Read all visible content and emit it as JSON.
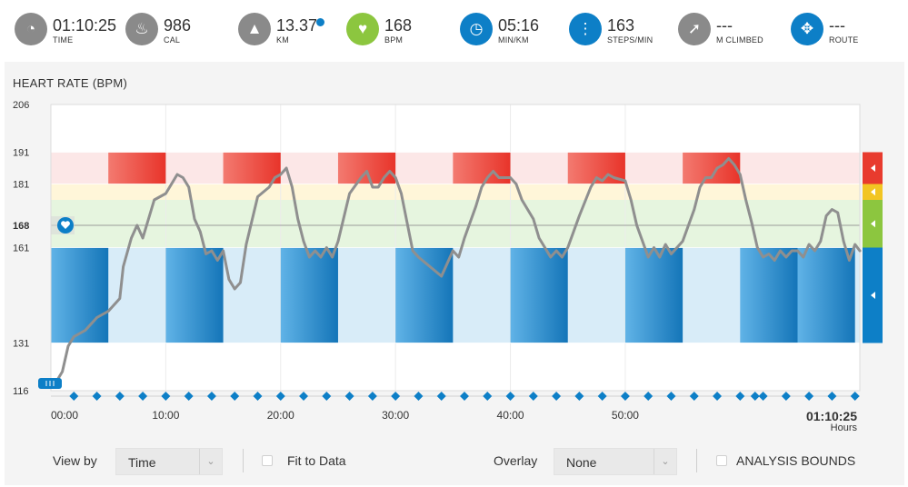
{
  "stats": [
    {
      "value": "01:10:25",
      "label": "TIME",
      "icon": "stopwatch-icon",
      "color": "#8a8a8a"
    },
    {
      "value": "986",
      "label": "CAL",
      "icon": "flame-icon",
      "color": "#8a8a8a"
    },
    {
      "value": "13.37",
      "label": "KM",
      "icon": "road-icon",
      "color": "#8a8a8a"
    },
    {
      "value": "168",
      "label": "BPM",
      "icon": "heart-icon",
      "color": "#8cc63f"
    },
    {
      "value": "05:16",
      "label": "MIN/KM",
      "icon": "speedometer-icon",
      "color": "#0d7fc7"
    },
    {
      "value": "163",
      "label": "STEPS/MIN",
      "icon": "footsteps-icon",
      "color": "#0d7fc7"
    },
    {
      "value": "---",
      "label": "M CLIMBED",
      "icon": "climb-arrow-icon",
      "color": "#8a8a8a"
    },
    {
      "value": "---",
      "label": "ROUTE",
      "icon": "route-icon",
      "color": "#0d7fc7"
    }
  ],
  "chart_data": {
    "type": "line",
    "title": "HEART RATE (BPM)",
    "x_unit": "minutes",
    "x_ticks": [
      "00:00",
      "10:00",
      "20:00",
      "30:00",
      "40:00",
      "50:00"
    ],
    "x_tick_values": [
      0,
      10,
      20,
      30,
      40,
      50
    ],
    "end_label": "01:10:25",
    "end_sublabel": "Hours",
    "xlim": [
      0,
      70.42
    ],
    "ylim": [
      116,
      206
    ],
    "y_ticks": [
      206,
      191,
      181,
      168,
      161,
      131,
      116
    ],
    "avg_bpm": 168,
    "zones": [
      {
        "from": 181,
        "to": 191,
        "color": "#fce7e7"
      },
      {
        "from": 176,
        "to": 181,
        "color": "#fff6d9"
      },
      {
        "from": 168,
        "to": 176,
        "color": "#e6f5df"
      },
      {
        "from": 161,
        "to": 168,
        "color": "#e6f5df"
      },
      {
        "from": 131,
        "to": 161,
        "color": "#d8ecf8"
      }
    ],
    "zone_markers": [
      "#e83b2e",
      "#f2c523",
      "#8cc63f",
      "#0d7fc7"
    ],
    "high_intervals": [
      [
        5,
        10
      ],
      [
        15,
        20
      ],
      [
        25,
        30
      ],
      [
        35,
        40
      ],
      [
        45,
        50
      ],
      [
        55,
        60
      ]
    ],
    "low_intervals": [
      [
        0,
        5
      ],
      [
        10,
        15
      ],
      [
        20,
        25
      ],
      [
        30,
        35
      ],
      [
        40,
        45
      ],
      [
        50,
        55
      ],
      [
        60,
        65
      ],
      [
        65,
        70
      ]
    ],
    "marker_times": [
      2,
      4,
      6,
      8,
      10,
      12,
      14,
      16,
      18,
      20,
      22,
      24,
      26,
      28,
      30,
      32,
      34,
      36,
      38,
      40,
      42,
      44,
      46,
      48,
      50,
      52,
      54,
      56,
      58,
      60,
      61.3,
      62,
      64,
      66,
      68,
      70
    ],
    "series": [
      {
        "values": [
          [
            0,
            117
          ],
          [
            0.5,
            119
          ],
          [
            1,
            122
          ],
          [
            1.5,
            130
          ],
          [
            2,
            133
          ],
          [
            3,
            135
          ],
          [
            4,
            139
          ],
          [
            5,
            141
          ],
          [
            5.5,
            143
          ],
          [
            6,
            145
          ],
          [
            6.3,
            155
          ],
          [
            7,
            164
          ],
          [
            7.5,
            168
          ],
          [
            8,
            164
          ],
          [
            8.5,
            170
          ],
          [
            9,
            176
          ],
          [
            10,
            178
          ],
          [
            10.5,
            181
          ],
          [
            11,
            184
          ],
          [
            11.5,
            183
          ],
          [
            12,
            180
          ],
          [
            12.5,
            170
          ],
          [
            13,
            166
          ],
          [
            13.5,
            159
          ],
          [
            14,
            160
          ],
          [
            14.5,
            157
          ],
          [
            15,
            160
          ],
          [
            15.5,
            151
          ],
          [
            16,
            148
          ],
          [
            16.5,
            150
          ],
          [
            17,
            162
          ],
          [
            18,
            177
          ],
          [
            19,
            180
          ],
          [
            19.5,
            183
          ],
          [
            20,
            184
          ],
          [
            20.5,
            186
          ],
          [
            21,
            180
          ],
          [
            21.5,
            170
          ],
          [
            22,
            163
          ],
          [
            22.5,
            158
          ],
          [
            23,
            160
          ],
          [
            23.5,
            158
          ],
          [
            24,
            161
          ],
          [
            24.5,
            158
          ],
          [
            25,
            163
          ],
          [
            26,
            178
          ],
          [
            27,
            183
          ],
          [
            27.5,
            185
          ],
          [
            28,
            180
          ],
          [
            28.5,
            180
          ],
          [
            29,
            183
          ],
          [
            29.5,
            185
          ],
          [
            30,
            183
          ],
          [
            30.5,
            178
          ],
          [
            31,
            169
          ],
          [
            31.5,
            160
          ],
          [
            32,
            158
          ],
          [
            33,
            155
          ],
          [
            34,
            152
          ],
          [
            34.5,
            156
          ],
          [
            35,
            160
          ],
          [
            35.5,
            158
          ],
          [
            36,
            164
          ],
          [
            37,
            174
          ],
          [
            37.5,
            180
          ],
          [
            38,
            183
          ],
          [
            38.5,
            185
          ],
          [
            39,
            183
          ],
          [
            40,
            183
          ],
          [
            40.5,
            181
          ],
          [
            41,
            176
          ],
          [
            42,
            170
          ],
          [
            42.5,
            164
          ],
          [
            43,
            161
          ],
          [
            43.5,
            158
          ],
          [
            44,
            160
          ],
          [
            44.5,
            158
          ],
          [
            45,
            161
          ],
          [
            46,
            171
          ],
          [
            47,
            180
          ],
          [
            47.5,
            183
          ],
          [
            48,
            182
          ],
          [
            48.5,
            184
          ],
          [
            49,
            183
          ],
          [
            50,
            182
          ],
          [
            50.5,
            176
          ],
          [
            51,
            168
          ],
          [
            51.5,
            163
          ],
          [
            52,
            158
          ],
          [
            52.5,
            161
          ],
          [
            53,
            158
          ],
          [
            53.5,
            162
          ],
          [
            54,
            159
          ],
          [
            55,
            163
          ],
          [
            56,
            173
          ],
          [
            56.5,
            180
          ],
          [
            57,
            183
          ],
          [
            57.5,
            183
          ],
          [
            58,
            186
          ],
          [
            58.5,
            187
          ],
          [
            59,
            189
          ],
          [
            59.5,
            187
          ],
          [
            60,
            184
          ],
          [
            60.5,
            176
          ],
          [
            61,
            169
          ],
          [
            61.5,
            161
          ],
          [
            62,
            158
          ],
          [
            62.5,
            159
          ],
          [
            63,
            157
          ],
          [
            63.5,
            160
          ],
          [
            64,
            158
          ],
          [
            64.5,
            160
          ],
          [
            65,
            160
          ],
          [
            65.5,
            158
          ],
          [
            66,
            162
          ],
          [
            66.5,
            160
          ],
          [
            67,
            163
          ],
          [
            67.5,
            171
          ],
          [
            68,
            173
          ],
          [
            68.5,
            172
          ],
          [
            69,
            163
          ],
          [
            69.5,
            157
          ],
          [
            70,
            162
          ],
          [
            70.42,
            160
          ]
        ]
      }
    ]
  },
  "controls": {
    "view_by_label": "View by",
    "view_by_value": "Time",
    "fit_label": "Fit to Data",
    "overlay_label": "Overlay",
    "overlay_value": "None",
    "analysis_label": "ANALYSIS BOUNDS"
  }
}
